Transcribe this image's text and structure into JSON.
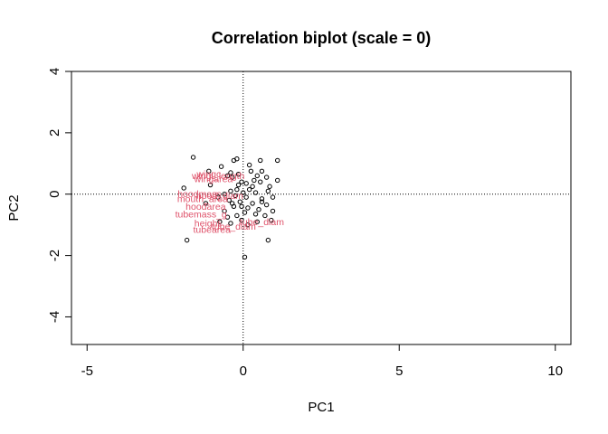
{
  "chart_data": {
    "type": "scatter",
    "title": "Correlation biplot (scale = 0)",
    "xlabel": "PC1",
    "ylabel": "PC2",
    "xlim": [
      -5.5,
      10.5
    ],
    "ylim": [
      -4.9,
      4.0
    ],
    "xticks": [
      -5,
      0,
      5,
      10
    ],
    "yticks": [
      -4,
      -2,
      0,
      2,
      4
    ],
    "reference_lines": {
      "x": 0,
      "y": 0,
      "style": "dotted"
    },
    "grid": false,
    "point_color": "#000000",
    "label_color": "#DF536B",
    "points": [
      [
        -1.6,
        1.2
      ],
      [
        -0.3,
        1.1
      ],
      [
        -0.2,
        1.15
      ],
      [
        0.55,
        1.1
      ],
      [
        1.1,
        1.1
      ],
      [
        0.2,
        0.95
      ],
      [
        0.6,
        0.75
      ],
      [
        -0.7,
        0.9
      ],
      [
        -1.1,
        0.75
      ],
      [
        -0.4,
        0.7
      ],
      [
        -0.5,
        0.6
      ],
      [
        -0.35,
        0.55
      ],
      [
        0.45,
        0.6
      ],
      [
        0.75,
        0.55
      ],
      [
        0.35,
        0.45
      ],
      [
        1.1,
        0.45
      ],
      [
        -0.05,
        0.4
      ],
      [
        0.1,
        0.35
      ],
      [
        0.55,
        0.4
      ],
      [
        -0.15,
        0.3
      ],
      [
        -1.05,
        0.3
      ],
      [
        -1.9,
        0.2
      ],
      [
        -0.2,
        0.15
      ],
      [
        0.3,
        0.25
      ],
      [
        0.85,
        0.25
      ],
      [
        -0.4,
        0.1
      ],
      [
        0.0,
        0.05
      ],
      [
        0.4,
        0.05
      ],
      [
        0.8,
        0.1
      ],
      [
        -0.6,
        0.0
      ],
      [
        -0.25,
        -0.05
      ],
      [
        0.1,
        -0.1
      ],
      [
        -0.8,
        -0.1
      ],
      [
        0.6,
        -0.15
      ],
      [
        0.95,
        -0.1
      ],
      [
        -0.45,
        -0.2
      ],
      [
        0.3,
        -0.3
      ],
      [
        -0.1,
        -0.25
      ],
      [
        -1.2,
        -0.3
      ],
      [
        0.75,
        -0.35
      ],
      [
        -0.3,
        -0.4
      ],
      [
        0.15,
        -0.45
      ],
      [
        0.5,
        -0.5
      ],
      [
        -0.6,
        -0.55
      ],
      [
        0.95,
        -0.55
      ],
      [
        0.05,
        -0.6
      ],
      [
        0.4,
        -0.65
      ],
      [
        -0.2,
        -0.7
      ],
      [
        -0.5,
        -0.75
      ],
      [
        0.7,
        -0.7
      ],
      [
        0.9,
        -0.85
      ],
      [
        -0.05,
        -0.85
      ],
      [
        0.45,
        -0.9
      ],
      [
        -0.4,
        -0.95
      ],
      [
        0.15,
        -1.0
      ],
      [
        -0.75,
        -0.9
      ],
      [
        -1.8,
        -1.5
      ],
      [
        0.8,
        -1.5
      ],
      [
        0.05,
        -2.05
      ],
      [
        0.25,
        0.75
      ],
      [
        -0.15,
        0.65
      ],
      [
        -0.05,
        -0.4
      ],
      [
        0.2,
        0.15
      ],
      [
        -0.35,
        -0.3
      ],
      [
        0.6,
        -0.25
      ]
    ],
    "variables": [
      {
        "name": "wingc",
        "x": -1.1,
        "y": 0.65
      },
      {
        "name": "wingl_length",
        "x": -0.8,
        "y": 0.6
      },
      {
        "name": "wingarea",
        "x": -0.95,
        "y": 0.5
      },
      {
        "name": "hoodmass",
        "x": -1.4,
        "y": 0.0
      },
      {
        "name": "mouth_area",
        "x": -1.3,
        "y": -0.15
      },
      {
        "name": "hood_diam",
        "x": -0.75,
        "y": -0.05
      },
      {
        "name": "hoodarea",
        "x": -1.2,
        "y": -0.4
      },
      {
        "name": "tubemass_g",
        "x": -1.35,
        "y": -0.65
      },
      {
        "name": "tube_diam",
        "x": 0.6,
        "y": -0.9
      },
      {
        "name": "height",
        "x": -1.15,
        "y": -0.95
      },
      {
        "name": "tube_diam",
        "x": -0.3,
        "y": -1.05
      },
      {
        "name": "tubearea",
        "x": -1.0,
        "y": -1.15
      }
    ]
  }
}
